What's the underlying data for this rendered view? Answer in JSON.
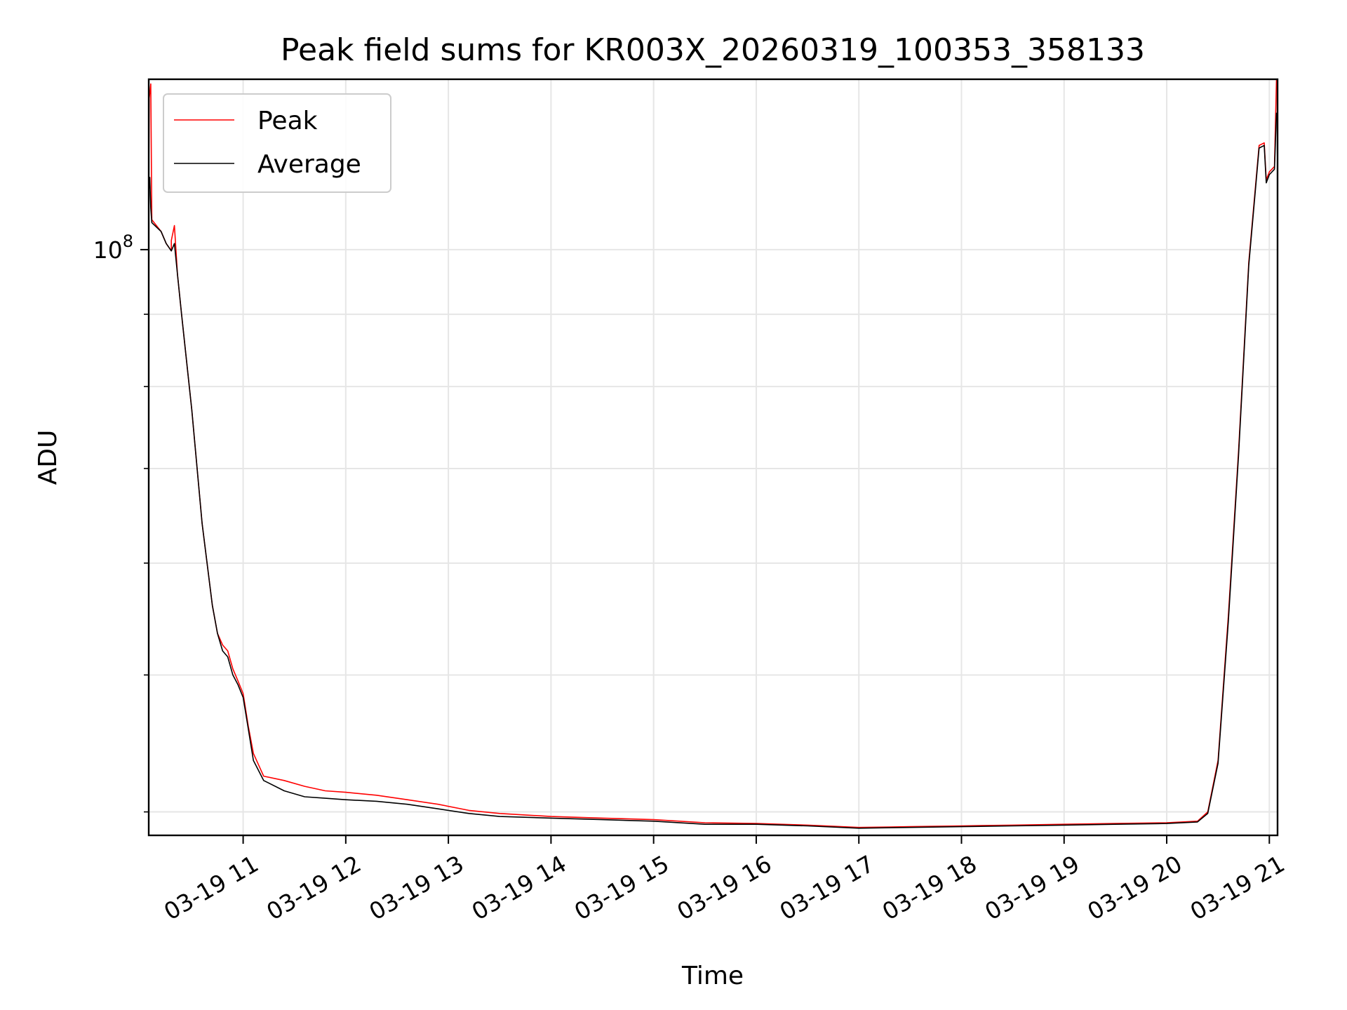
{
  "chart_data": {
    "type": "line",
    "title": "Peak field sums for KR003X_20260319_100353_358133",
    "xlabel": "Time",
    "ylabel": "ADU",
    "yscale": "log",
    "y_major_tick": {
      "value": 100000000,
      "label_base": "10",
      "label_exp": "8"
    },
    "y_minor_ticks": [
      40000000,
      50000000,
      60000000,
      70000000,
      80000000,
      90000000
    ],
    "ylim": [
      38500000,
      132000000
    ],
    "xlim_hours": [
      10.08,
      21.08
    ],
    "x_ticks": [
      {
        "value": 11,
        "label": "03-19 11"
      },
      {
        "value": 12,
        "label": "03-19 12"
      },
      {
        "value": 13,
        "label": "03-19 13"
      },
      {
        "value": 14,
        "label": "03-19 14"
      },
      {
        "value": 15,
        "label": "03-19 15"
      },
      {
        "value": 16,
        "label": "03-19 16"
      },
      {
        "value": 17,
        "label": "03-19 17"
      },
      {
        "value": 18,
        "label": "03-19 18"
      },
      {
        "value": 19,
        "label": "03-19 19"
      },
      {
        "value": 20,
        "label": "03-19 20"
      },
      {
        "value": 21,
        "label": "03-19 21"
      }
    ],
    "grid": true,
    "legend_position": "upper-left",
    "series": [
      {
        "name": "Peak",
        "color": "#ff0000",
        "points": [
          [
            10.08,
            112000000
          ],
          [
            10.085,
            128000000
          ],
          [
            10.1,
            131000000
          ],
          [
            10.11,
            105000000
          ],
          [
            10.2,
            103000000
          ],
          [
            10.25,
            101000000
          ],
          [
            10.3,
            99800000
          ],
          [
            10.3,
            101500000
          ],
          [
            10.33,
            104000000
          ],
          [
            10.36,
            96000000
          ],
          [
            10.4,
            90000000
          ],
          [
            10.5,
            77000000
          ],
          [
            10.6,
            64000000
          ],
          [
            10.7,
            56000000
          ],
          [
            10.75,
            53500000
          ],
          [
            10.8,
            52500000
          ],
          [
            10.85,
            52000000
          ],
          [
            10.9,
            50500000
          ],
          [
            10.95,
            49500000
          ],
          [
            11.0,
            48500000
          ],
          [
            11.05,
            46000000
          ],
          [
            11.1,
            44000000
          ],
          [
            11.2,
            42400000
          ],
          [
            11.4,
            42100000
          ],
          [
            11.6,
            41700000
          ],
          [
            11.8,
            41400000
          ],
          [
            12.0,
            41300000
          ],
          [
            12.3,
            41100000
          ],
          [
            12.6,
            40800000
          ],
          [
            12.9,
            40500000
          ],
          [
            13.2,
            40100000
          ],
          [
            13.5,
            39900000
          ],
          [
            14.0,
            39700000
          ],
          [
            14.5,
            39600000
          ],
          [
            15.0,
            39500000
          ],
          [
            15.5,
            39300000
          ],
          [
            16.0,
            39250000
          ],
          [
            16.5,
            39150000
          ],
          [
            17.0,
            39000000
          ],
          [
            17.5,
            39050000
          ],
          [
            18.0,
            39100000
          ],
          [
            18.5,
            39150000
          ],
          [
            19.0,
            39200000
          ],
          [
            19.5,
            39250000
          ],
          [
            20.0,
            39300000
          ],
          [
            20.3,
            39400000
          ],
          [
            20.4,
            40000000
          ],
          [
            20.5,
            43500000
          ],
          [
            20.6,
            55000000
          ],
          [
            20.7,
            72000000
          ],
          [
            20.8,
            98000000
          ],
          [
            20.9,
            118500000
          ],
          [
            20.95,
            119000000
          ],
          [
            20.97,
            112000000
          ],
          [
            21.0,
            113500000
          ],
          [
            21.05,
            114500000
          ],
          [
            21.07,
            132000000
          ]
        ]
      },
      {
        "name": "Average",
        "color": "#000000",
        "points": [
          [
            10.08,
            110000000
          ],
          [
            10.09,
            112500000
          ],
          [
            10.1,
            107000000
          ],
          [
            10.11,
            104500000
          ],
          [
            10.2,
            103000000
          ],
          [
            10.25,
            101000000
          ],
          [
            10.3,
            99800000
          ],
          [
            10.33,
            101000000
          ],
          [
            10.36,
            96000000
          ],
          [
            10.4,
            90000000
          ],
          [
            10.5,
            77000000
          ],
          [
            10.6,
            64000000
          ],
          [
            10.7,
            56000000
          ],
          [
            10.75,
            53500000
          ],
          [
            10.8,
            52000000
          ],
          [
            10.85,
            51500000
          ],
          [
            10.9,
            50000000
          ],
          [
            10.95,
            49200000
          ],
          [
            11.0,
            48200000
          ],
          [
            11.05,
            45800000
          ],
          [
            11.1,
            43500000
          ],
          [
            11.2,
            42100000
          ],
          [
            11.4,
            41400000
          ],
          [
            11.6,
            41000000
          ],
          [
            11.8,
            40900000
          ],
          [
            12.0,
            40800000
          ],
          [
            12.3,
            40700000
          ],
          [
            12.6,
            40500000
          ],
          [
            12.9,
            40200000
          ],
          [
            13.2,
            39900000
          ],
          [
            13.5,
            39700000
          ],
          [
            14.0,
            39600000
          ],
          [
            14.5,
            39500000
          ],
          [
            15.0,
            39400000
          ],
          [
            15.5,
            39200000
          ],
          [
            16.0,
            39200000
          ],
          [
            16.5,
            39100000
          ],
          [
            17.0,
            38950000
          ],
          [
            17.5,
            39000000
          ],
          [
            18.0,
            39050000
          ],
          [
            18.5,
            39100000
          ],
          [
            19.0,
            39150000
          ],
          [
            19.5,
            39200000
          ],
          [
            20.0,
            39250000
          ],
          [
            20.3,
            39350000
          ],
          [
            20.4,
            39900000
          ],
          [
            20.5,
            43300000
          ],
          [
            20.6,
            54500000
          ],
          [
            20.7,
            71500000
          ],
          [
            20.8,
            97500000
          ],
          [
            20.9,
            118000000
          ],
          [
            20.95,
            118500000
          ],
          [
            20.97,
            111500000
          ],
          [
            21.0,
            113000000
          ],
          [
            21.05,
            114000000
          ],
          [
            21.07,
            125000000
          ]
        ]
      }
    ]
  }
}
